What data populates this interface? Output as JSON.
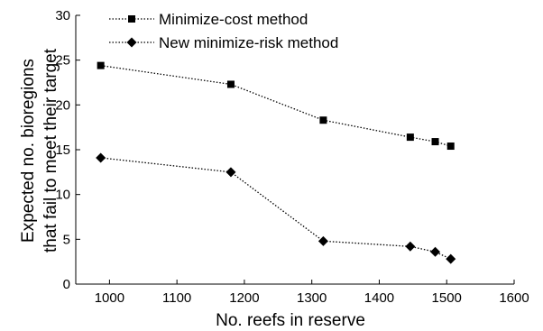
{
  "chart_data": {
    "type": "line",
    "xlabel": "No. reefs in reserve",
    "ylabel_lines": [
      "Expected no. bioregions",
      "that fail to meet their target"
    ],
    "xlim": [
      950,
      1600
    ],
    "ylim": [
      0,
      30
    ],
    "xticks": [
      "1000",
      "1100",
      "1200",
      "1300",
      "1400",
      "1500",
      "1600"
    ],
    "yticks": [
      "0",
      "5",
      "10",
      "15",
      "20",
      "25",
      "30"
    ],
    "grid": false,
    "legend_position": "top-left",
    "series": [
      {
        "name": "Minimize-cost method",
        "marker": "square",
        "line_style": "dotted",
        "color": "#000000",
        "x": [
          987,
          1180,
          1317,
          1446,
          1483,
          1506
        ],
        "y": [
          24.4,
          22.3,
          18.3,
          16.4,
          15.9,
          15.4
        ]
      },
      {
        "name": "New minimize-risk method",
        "marker": "diamond",
        "line_style": "dotted",
        "color": "#000000",
        "x": [
          987,
          1180,
          1317,
          1446,
          1483,
          1506
        ],
        "y": [
          14.1,
          12.5,
          4.8,
          4.2,
          3.6,
          2.8
        ]
      }
    ]
  }
}
